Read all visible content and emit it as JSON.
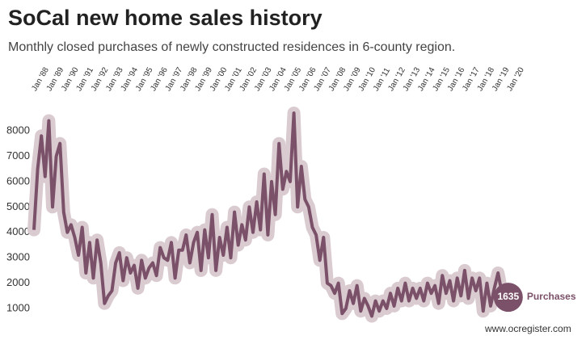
{
  "chart_data": {
    "type": "line",
    "title": "SoCal new home sales history",
    "subtitle": "Monthly closed purchases of newly constructed residences in 6-county region.",
    "source": "www.ocregister.com",
    "x": [
      1988,
      1988.25,
      1988.5,
      1988.75,
      1989,
      1989.25,
      1989.5,
      1989.75,
      1990,
      1990.25,
      1990.5,
      1990.75,
      1991,
      1991.25,
      1991.5,
      1991.75,
      1992,
      1992.25,
      1992.5,
      1992.75,
      1993,
      1993.25,
      1993.5,
      1993.75,
      1994,
      1994.25,
      1994.5,
      1994.75,
      1995,
      1995.25,
      1995.5,
      1995.75,
      1996,
      1996.25,
      1996.5,
      1996.75,
      1997,
      1997.25,
      1997.5,
      1997.75,
      1998,
      1998.25,
      1998.5,
      1998.75,
      1999,
      1999.25,
      1999.5,
      1999.75,
      2000,
      2000.25,
      2000.5,
      2000.75,
      2001,
      2001.25,
      2001.5,
      2001.75,
      2002,
      2002.25,
      2002.5,
      2002.75,
      2003,
      2003.25,
      2003.5,
      2003.75,
      2004,
      2004.25,
      2004.5,
      2004.75,
      2005,
      2005.25,
      2005.5,
      2005.75,
      2006,
      2006.25,
      2006.5,
      2006.75,
      2007,
      2007.25,
      2007.5,
      2007.75,
      2008,
      2008.25,
      2008.5,
      2008.75,
      2009,
      2009.25,
      2009.5,
      2009.75,
      2010,
      2010.25,
      2010.5,
      2010.75,
      2011,
      2011.25,
      2011.5,
      2011.75,
      2012,
      2012.25,
      2012.5,
      2012.75,
      2013,
      2013.25,
      2013.5,
      2013.75,
      2014,
      2014.25,
      2014.5,
      2014.75,
      2015,
      2015.25,
      2015.5,
      2015.75,
      2016,
      2016.25,
      2016.5,
      2016.75,
      2017,
      2017.25,
      2017.5,
      2017.75,
      2018,
      2018.25,
      2018.5,
      2018.75,
      2019,
      2019.25,
      2019.5
    ],
    "series": [
      {
        "name": "Purchases",
        "color": "#7b5069",
        "values": [
          4100,
          6500,
          7800,
          6200,
          8400,
          5000,
          7000,
          7500,
          4800,
          4000,
          4300,
          3800,
          3100,
          4200,
          2400,
          3600,
          2200,
          3700,
          2800,
          1200,
          1500,
          1700,
          2800,
          3200,
          2100,
          3000,
          2400,
          2700,
          1800,
          2900,
          2200,
          2600,
          2800,
          2300,
          3400,
          3000,
          2900,
          3600,
          2200,
          3300,
          3300,
          3900,
          2800,
          3600,
          4000,
          2500,
          4100,
          3000,
          4700,
          2500,
          3800,
          3100,
          4200,
          3000,
          4800,
          3500,
          4300,
          3700,
          5000,
          4000,
          5200,
          4100,
          6300,
          3900,
          6000,
          4700,
          7500,
          5700,
          6400,
          6000,
          8700,
          5000,
          6600,
          5300,
          5000,
          4200,
          3900,
          2900,
          3800,
          2000,
          1900,
          1600,
          2000,
          800,
          1000,
          1700,
          1200,
          1900,
          900,
          1400,
          1100,
          700,
          1300,
          900,
          1300,
          1000,
          1600,
          1100,
          1800,
          1300,
          2000,
          1300,
          1800,
          1400,
          1800,
          1300,
          2000,
          1600,
          1900,
          1200,
          2300,
          1600,
          2100,
          1300,
          2200,
          1500,
          2500,
          1400,
          2200,
          1700,
          2200,
          900,
          2000,
          1100,
          1800,
          2400,
          1635
        ]
      }
    ],
    "xlim": [
      1988,
      2020
    ],
    "xticks": [
      {
        "value": 1988,
        "label": "Jan '88"
      },
      {
        "value": 1989,
        "label": "Jan '89"
      },
      {
        "value": 1990,
        "label": "Jan '90"
      },
      {
        "value": 1991,
        "label": "Jan '91"
      },
      {
        "value": 1992,
        "label": "Jan '92"
      },
      {
        "value": 1993,
        "label": "Jan '93"
      },
      {
        "value": 1994,
        "label": "Jan '94"
      },
      {
        "value": 1995,
        "label": "Jan '95"
      },
      {
        "value": 1996,
        "label": "Jan '96"
      },
      {
        "value": 1997,
        "label": "Jan '97"
      },
      {
        "value": 1998,
        "label": "Jan '98"
      },
      {
        "value": 1999,
        "label": "Jan '99"
      },
      {
        "value": 2000,
        "label": "Jan '00"
      },
      {
        "value": 2001,
        "label": "Jan '01"
      },
      {
        "value": 2002,
        "label": "Jan '02"
      },
      {
        "value": 2003,
        "label": "Jan '03"
      },
      {
        "value": 2004,
        "label": "Jan '04"
      },
      {
        "value": 2005,
        "label": "Jan '05"
      },
      {
        "value": 2006,
        "label": "Jan '06"
      },
      {
        "value": 2007,
        "label": "Jan '07"
      },
      {
        "value": 2008,
        "label": "Jan '08"
      },
      {
        "value": 2009,
        "label": "Jan '09"
      },
      {
        "value": 2010,
        "label": "Jan '10"
      },
      {
        "value": 2011,
        "label": "Jan '11"
      },
      {
        "value": 2012,
        "label": "Jan '12"
      },
      {
        "value": 2013,
        "label": "Jan '13"
      },
      {
        "value": 2014,
        "label": "Jan '14"
      },
      {
        "value": 2015,
        "label": "Jan '15"
      },
      {
        "value": 2016,
        "label": "Jan '16"
      },
      {
        "value": 2017,
        "label": "Jan '17"
      },
      {
        "value": 2018,
        "label": "Jan '18"
      },
      {
        "value": 2019,
        "label": "Jan '19"
      },
      {
        "value": 2020,
        "label": "Jan '20"
      }
    ],
    "ylim": [
      600,
      9000
    ],
    "yticks": [
      1000,
      2000,
      3000,
      4000,
      5000,
      6000,
      7000,
      8000
    ],
    "grid": false
  }
}
